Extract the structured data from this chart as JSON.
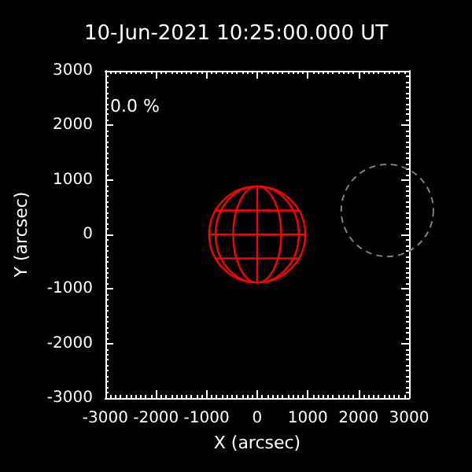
{
  "chart_data": {
    "type": "line",
    "title": "10-Jun-2021 10:25:00.000 UT",
    "xlabel": "X (arcsec)",
    "ylabel": "Y (arcsec)",
    "annotations": [
      "0.0 %"
    ],
    "xlim": [
      -3000,
      3000
    ],
    "ylim": [
      -3000,
      3000
    ],
    "xticks": [
      -3000,
      -2000,
      -1000,
      0,
      1000,
      2000,
      3000
    ],
    "yticks": [
      -3000,
      -2000,
      -1000,
      0,
      1000,
      2000,
      3000
    ]
  }
}
